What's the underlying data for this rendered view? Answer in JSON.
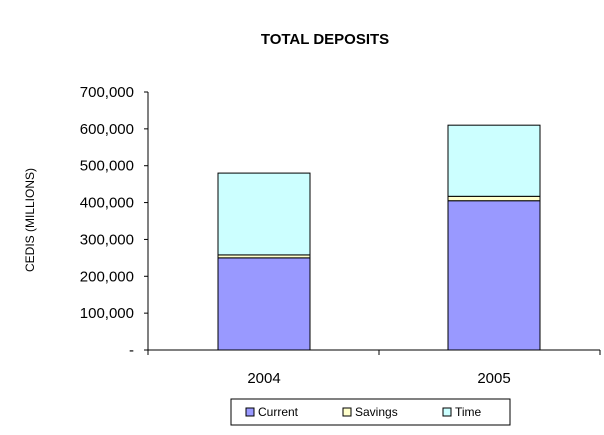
{
  "chart_data": {
    "type": "bar",
    "stacked": true,
    "title": "TOTAL DEPOSITS",
    "xlabel": "",
    "ylabel": "CEDIS (MILLIONS)",
    "categories": [
      "2004",
      "2005"
    ],
    "series": [
      {
        "name": "Current",
        "values": [
          250000,
          405000
        ],
        "color": "#9999ff"
      },
      {
        "name": "Savings",
        "values": [
          8000,
          12000
        ],
        "color": "#ffffcc"
      },
      {
        "name": "Time",
        "values": [
          222000,
          193000
        ],
        "color": "#ccffff"
      }
    ],
    "ylim": [
      0,
      700000
    ],
    "yticks": [
      {
        "value": 0,
        "label": "-"
      },
      {
        "value": 100000,
        "label": "100,000"
      },
      {
        "value": 200000,
        "label": "200,000"
      },
      {
        "value": 300000,
        "label": "300,000"
      },
      {
        "value": 400000,
        "label": "400,000"
      },
      {
        "value": 500000,
        "label": "500,000"
      },
      {
        "value": 600000,
        "label": "600,000"
      },
      {
        "value": 700000,
        "label": "700,000"
      }
    ],
    "grid": false,
    "legend": "bottom"
  }
}
